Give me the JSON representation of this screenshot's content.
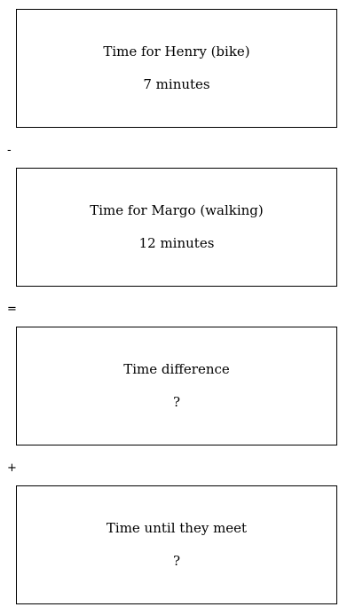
{
  "boxes": [
    {
      "label": "Time for Henry (bike)",
      "value": "7 minutes"
    },
    {
      "label": "Time for Margo (walking)",
      "value": "12 minutes"
    },
    {
      "label": "Time difference",
      "value": "?"
    },
    {
      "label": "Time until they meet",
      "value": "?"
    }
  ],
  "operators": [
    "-",
    "=",
    "+"
  ]
}
